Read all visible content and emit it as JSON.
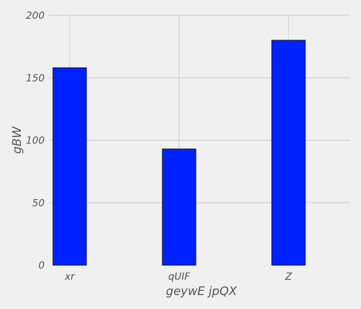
{
  "chart_data": {
    "type": "bar",
    "categories": [
      "xr",
      "qUIF",
      "Z"
    ],
    "values": [
      158,
      93,
      180
    ],
    "xlabel": "geywE jpQX",
    "ylabel": "gBW",
    "ylim": [
      0,
      200
    ],
    "yticks": [
      0,
      50,
      100,
      150,
      200
    ],
    "grid": true,
    "bar_color": "#0022ff",
    "bar_edge_color": "#111111",
    "background": "#f0f0f0",
    "grid_color": "#cbcbcb"
  }
}
